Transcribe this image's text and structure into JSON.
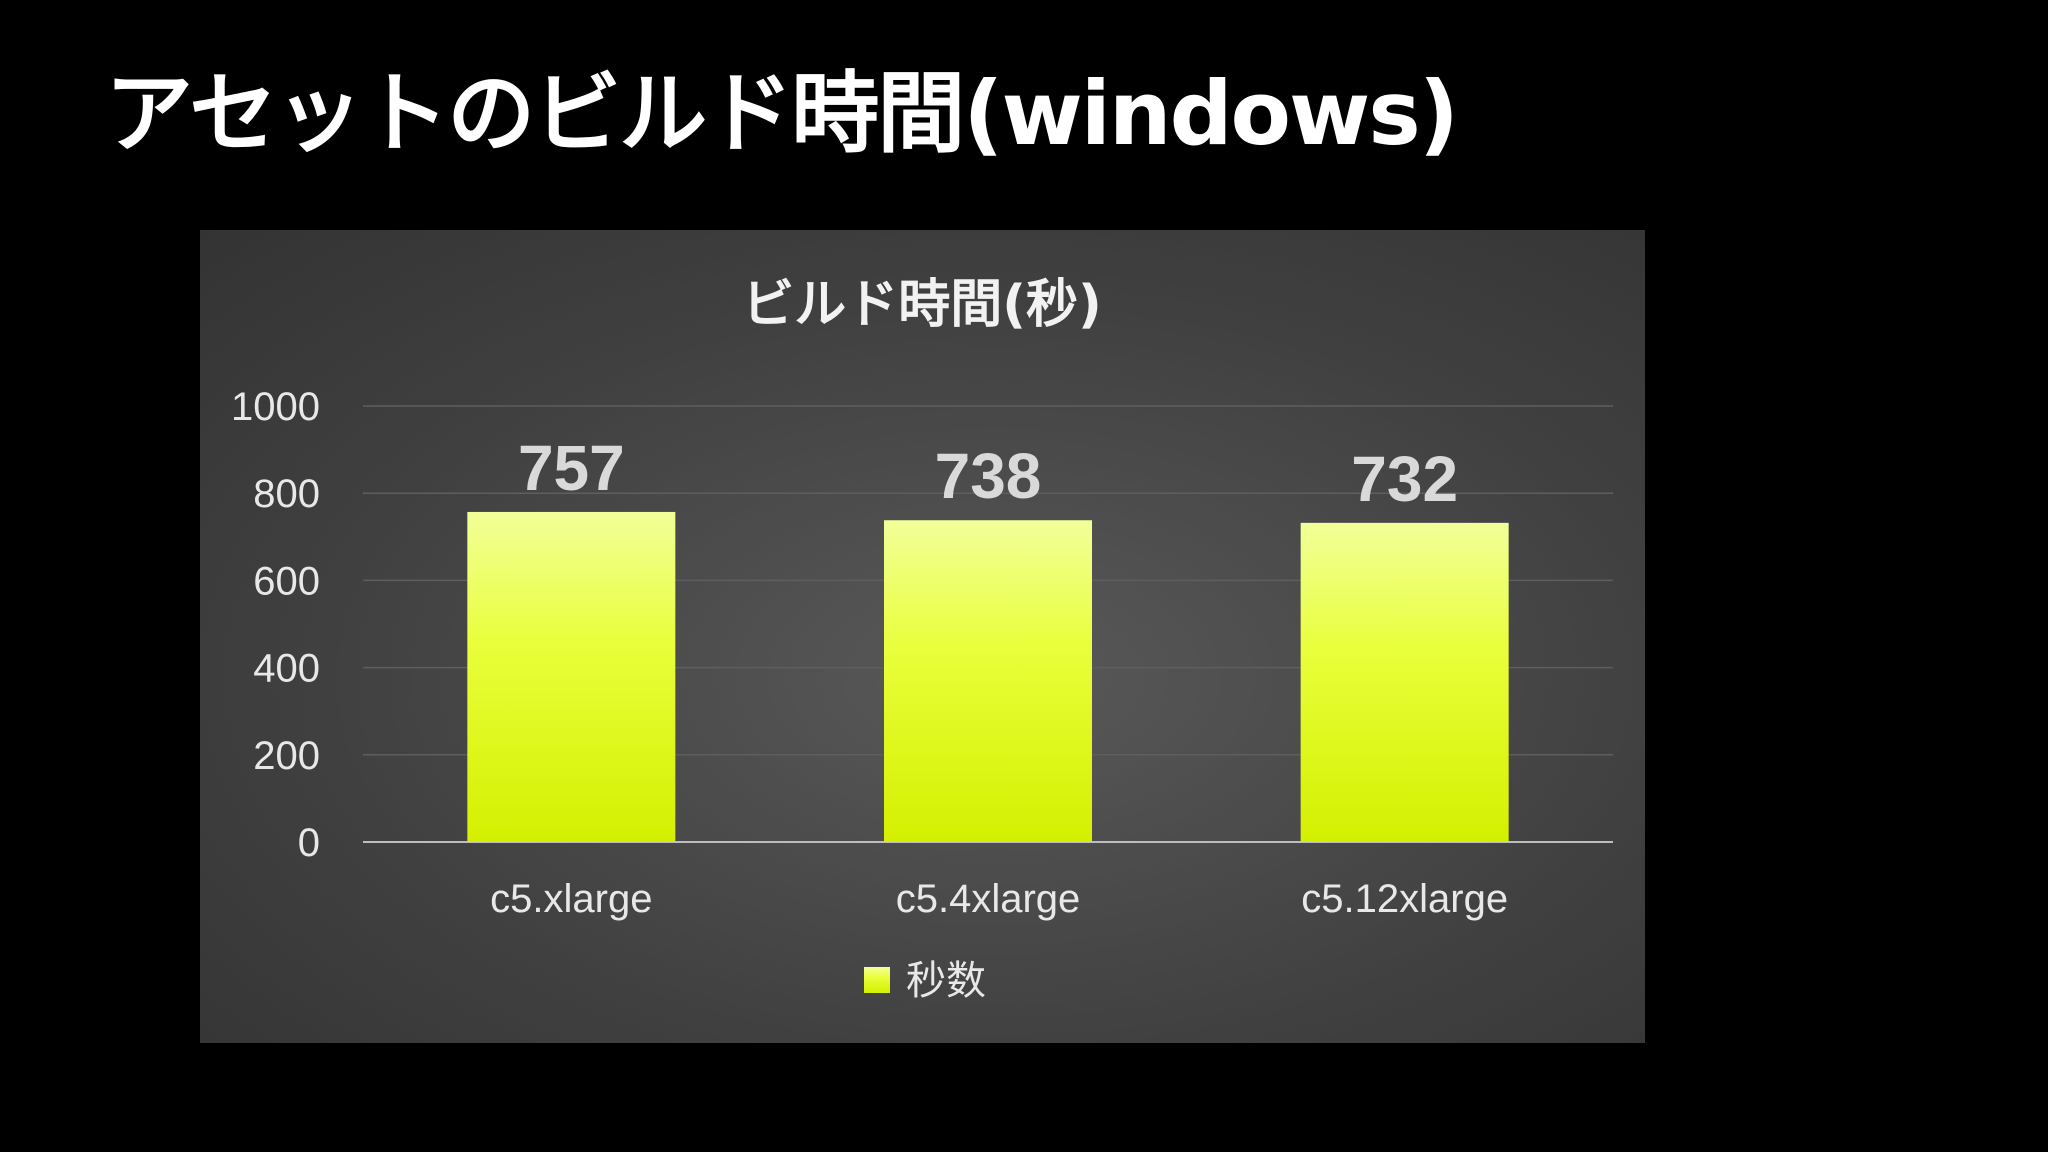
{
  "slide": {
    "title": "アセットのビルド時間(windows)"
  },
  "colors": {
    "background": "#000000",
    "bar_top": "#f2ff99",
    "bar_mid": "#e8ff3a",
    "bar_bottom": "#d4f000",
    "panel": "#454545"
  },
  "chart_data": {
    "type": "bar",
    "title": "ビルド時間(秒)",
    "categories": [
      "c5.xlarge",
      "c5.4xlarge",
      "c5.12xlarge"
    ],
    "series": [
      {
        "name": "秒数",
        "values": [
          757,
          738,
          732
        ]
      }
    ],
    "ylim": [
      0,
      1000
    ],
    "yticks": [
      0,
      200,
      400,
      600,
      800,
      1000
    ],
    "grid": true,
    "legend": "bottom",
    "data_labels": true
  }
}
